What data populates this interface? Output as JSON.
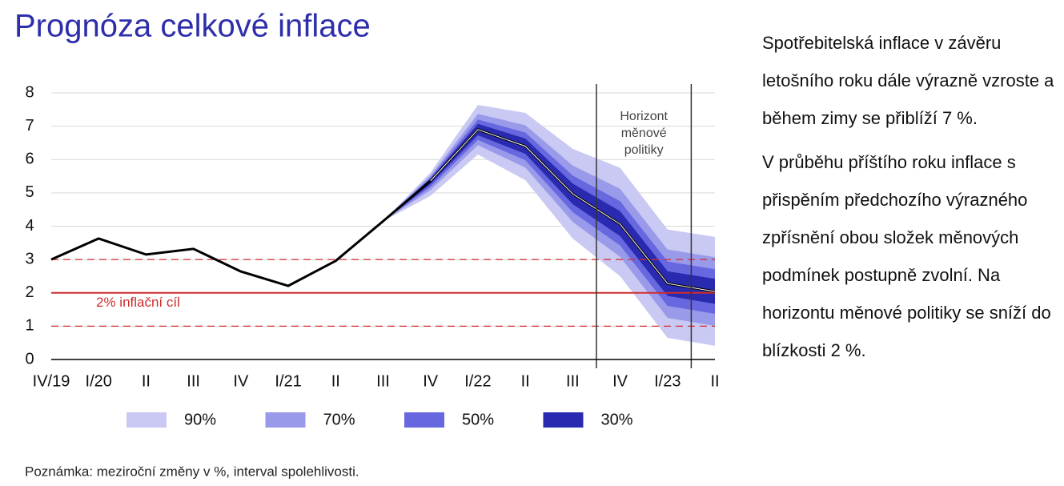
{
  "chart_data": {
    "type": "fan",
    "title": "Prognóza celkové inflace",
    "categories": [
      "IV/19",
      "I/20",
      "II",
      "III",
      "IV",
      "I/21",
      "II",
      "III",
      "IV",
      "I/22",
      "II",
      "III",
      "IV",
      "I/23",
      "II"
    ],
    "values": [
      3.0,
      3.63,
      3.15,
      3.32,
      2.64,
      2.21,
      2.96,
      4.15,
      5.36,
      6.9,
      6.4,
      4.97,
      4.06,
      2.28,
      2.04
    ],
    "color": "#000000",
    "bands": [
      {
        "name": "90%",
        "color": "#c9c9f3",
        "lower": [
          null,
          null,
          null,
          null,
          null,
          null,
          null,
          4.15,
          4.91,
          6.15,
          5.38,
          3.63,
          2.5,
          0.65,
          0.41
        ],
        "upper": [
          null,
          null,
          null,
          null,
          null,
          null,
          null,
          4.15,
          5.61,
          7.64,
          7.4,
          6.32,
          5.75,
          3.9,
          3.68
        ]
      },
      {
        "name": "70%",
        "color": "#9a9aeb",
        "lower": [
          null,
          null,
          null,
          null,
          null,
          null,
          null,
          4.15,
          5.08,
          6.43,
          5.76,
          4.13,
          3.08,
          1.25,
          1.01
        ],
        "upper": [
          null,
          null,
          null,
          null,
          null,
          null,
          null,
          4.15,
          5.52,
          7.37,
          7.03,
          5.82,
          5.12,
          3.3,
          3.07
        ]
      },
      {
        "name": "50%",
        "color": "#6767e0",
        "lower": [
          null,
          null,
          null,
          null,
          null,
          null,
          null,
          4.15,
          5.18,
          6.59,
          5.98,
          4.42,
          3.42,
          1.61,
          1.37
        ],
        "upper": [
          null,
          null,
          null,
          null,
          null,
          null,
          null,
          4.15,
          5.46,
          7.2,
          6.81,
          5.52,
          4.75,
          2.94,
          2.71
        ]
      },
      {
        "name": "30%",
        "color": "#2a2ab0",
        "lower": [
          null,
          null,
          null,
          null,
          null,
          null,
          null,
          4.15,
          5.26,
          6.73,
          6.17,
          4.66,
          3.7,
          1.91,
          1.67
        ],
        "upper": [
          null,
          null,
          null,
          null,
          null,
          null,
          null,
          4.15,
          5.42,
          7.07,
          6.63,
          5.28,
          4.45,
          2.65,
          2.42
        ]
      }
    ],
    "ylim": [
      0,
      8
    ],
    "yticks": [
      0,
      1,
      2,
      3,
      4,
      5,
      6,
      7,
      8
    ],
    "grid": true,
    "reference_lines": [
      {
        "value": 2,
        "label": "2% inflační cíl",
        "style": "solid",
        "color": "#d02c2c"
      },
      {
        "value": 1,
        "style": "dashed",
        "color": "#d02c2c"
      },
      {
        "value": 3,
        "style": "dashed",
        "color": "#d02c2c"
      }
    ],
    "horizon_label": [
      "Horizont",
      "měnové",
      "politiky"
    ],
    "note": "Poznámka: meziroční změny v %, interval spolehlivosti."
  },
  "side_text": [
    "Spotřebitelská inflace v závěru letošního roku dále výrazně vzroste a během zimy se přiblíží 7 %.",
    "V průběhu příštího roku inflace s přispěním předchozího výrazného zpřísnění obou složek měnových podmínek postupně zvolní. Na horizontu měnové politiky se sníží do blízkosti 2 %."
  ]
}
